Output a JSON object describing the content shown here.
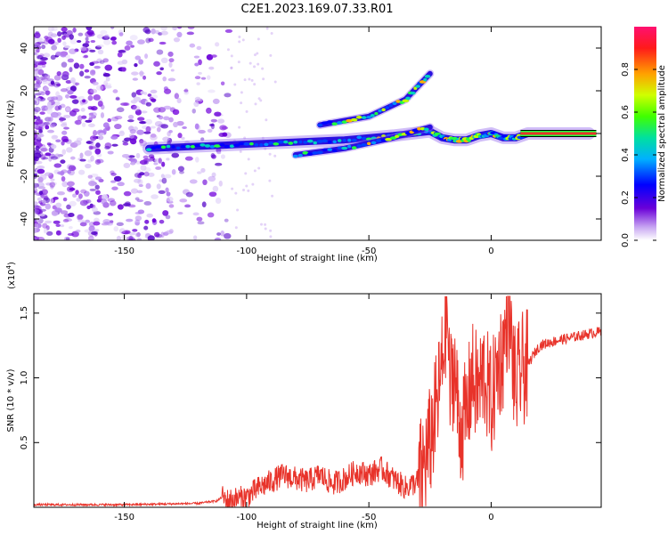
{
  "title": "C2E1.2023.169.07.33.R01",
  "colors": {
    "snr_line": "#e8332a",
    "core_band": "#e8332a",
    "axis": "#000000",
    "speckle": "#8a2be2"
  },
  "chart_data": [
    {
      "type": "heatmap",
      "xlabel": "Height of straight line (km)",
      "ylabel": "Frequency (Hz)",
      "xlim": [
        -187,
        45
      ],
      "ylim": [
        -50,
        50
      ],
      "xticks": [
        -150,
        -100,
        -50,
        0
      ],
      "yticks": [
        -40,
        -20,
        0,
        20,
        40
      ],
      "grid": false,
      "ridges": [
        {
          "x": [
            -140,
            -120,
            -100,
            -80,
            -60,
            -40,
            -25,
            -20,
            -15,
            -10,
            -5,
            0,
            5,
            10,
            15,
            40
          ],
          "y": [
            -7,
            -6,
            -5,
            -4,
            -3,
            -1,
            1,
            -2,
            -3,
            -3,
            -1,
            0,
            -2,
            -2,
            0,
            0
          ]
        },
        {
          "x": [
            -80,
            -60,
            -40,
            -25
          ],
          "y": [
            -10,
            -7,
            -2,
            3
          ]
        },
        {
          "x": [
            -70,
            -50,
            -35,
            -25
          ],
          "y": [
            4,
            8,
            16,
            28
          ]
        }
      ],
      "colorbar": {
        "label": "Normalized spectral amplitude",
        "ticks": [
          "0.0",
          "0.2",
          "0.4",
          "0.6",
          "0.8"
        ],
        "range": [
          0,
          1
        ],
        "scheme": "rainbow"
      }
    },
    {
      "type": "line",
      "xlabel": "Height of straight line (km)",
      "ylabel": "SNR (10 * v/v)",
      "multiplier": "(x10",
      "multiplier_exp": "4",
      "multiplier_close": ")",
      "xlim": [
        -187,
        45
      ],
      "ylim": [
        0,
        1.65
      ],
      "xticks": [
        -150,
        -100,
        -50,
        0
      ],
      "yticks": [
        "0.5",
        "1.0",
        "1.5"
      ],
      "grid": false,
      "series": [
        {
          "x": [
            -187,
            -150,
            -120,
            -112,
            -110,
            -108,
            -100,
            -95,
            -90,
            -85,
            -80,
            -75,
            -70,
            -65,
            -60,
            -55,
            -50,
            -45,
            -40,
            -35,
            -30,
            -27,
            -25,
            -22,
            -20,
            -18,
            -17,
            -15,
            -13,
            -10,
            -8,
            -5,
            -3,
            0,
            3,
            5,
            7,
            9,
            10,
            12,
            15,
            18,
            20,
            25,
            30,
            35,
            40,
            45
          ],
          "y": [
            0.02,
            0.02,
            0.03,
            0.05,
            0.08,
            0.05,
            0.08,
            0.15,
            0.2,
            0.25,
            0.22,
            0.2,
            0.25,
            0.18,
            0.22,
            0.28,
            0.25,
            0.3,
            0.22,
            0.15,
            0.2,
            0.35,
            0.5,
            0.8,
            1.1,
            1.58,
            0.9,
            1.1,
            0.6,
            0.7,
            1.0,
            0.9,
            1.05,
            0.8,
            1.1,
            1.2,
            1.58,
            1.1,
            0.9,
            1.05,
            1.1,
            1.2,
            1.25,
            1.28,
            1.3,
            1.32,
            1.34,
            1.36
          ]
        }
      ]
    }
  ]
}
